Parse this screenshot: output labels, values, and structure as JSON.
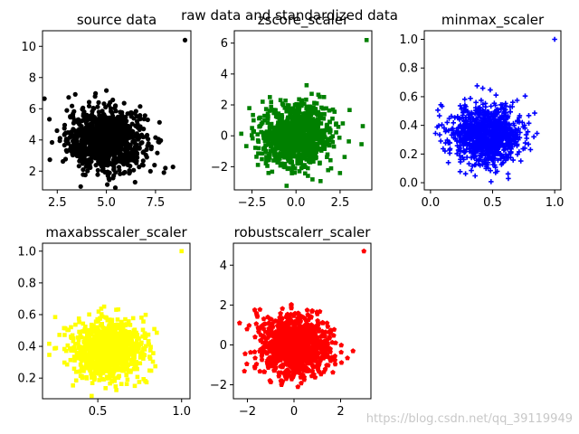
{
  "figure": {
    "suptitle": "raw data and standardized data",
    "watermark": "https://blog.csdn.net/qq_39119949"
  },
  "chart_data": [
    {
      "type": "scatter",
      "title": "source data",
      "color": "#000000",
      "marker": "circle",
      "xlim": [
        1.75,
        9.3
      ],
      "ylim": [
        0.8,
        11.0
      ],
      "xticks": [
        2.5,
        5.0,
        7.5
      ],
      "xtick_labels": [
        "2.5",
        "5.0",
        "7.5"
      ],
      "yticks": [
        2,
        4,
        6,
        8,
        10
      ],
      "ytick_labels": [
        "2",
        "4",
        "6",
        "8",
        "10"
      ],
      "cluster": {
        "center": [
          5.0,
          4.0
        ],
        "spread": [
          1.0,
          1.0
        ],
        "n": 1000
      },
      "outlier": [
        9.0,
        10.4
      ]
    },
    {
      "type": "scatter",
      "title": "zscore_scaler",
      "color": "#008000",
      "marker": "square",
      "xlim": [
        -3.5,
        4.3
      ],
      "ylim": [
        -3.5,
        6.8
      ],
      "xticks": [
        -2.5,
        0.0,
        2.5
      ],
      "xtick_labels": [
        "−2.5",
        "0.0",
        "2.5"
      ],
      "yticks": [
        -2,
        0,
        2,
        4,
        6
      ],
      "ytick_labels": [
        "−2",
        "0",
        "2",
        "4",
        "6"
      ],
      "cluster": {
        "center": [
          0.0,
          0.0
        ],
        "spread": [
          1.0,
          1.0
        ],
        "n": 1000
      },
      "outlier": [
        4.0,
        6.2
      ]
    },
    {
      "type": "scatter",
      "title": "minmax_scaler",
      "color": "#0000ff",
      "marker": "plus",
      "xlim": [
        -0.05,
        1.05
      ],
      "ylim": [
        -0.05,
        1.06
      ],
      "xticks": [
        0.0,
        0.5,
        1.0
      ],
      "xtick_labels": [
        "0.0",
        "0.5",
        "1.0"
      ],
      "yticks": [
        0.0,
        0.2,
        0.4,
        0.6,
        0.8,
        1.0
      ],
      "ytick_labels": [
        "0.0",
        "0.2",
        "0.4",
        "0.6",
        "0.8",
        "1.0"
      ],
      "cluster": {
        "center": [
          0.45,
          0.33
        ],
        "spread": [
          0.14,
          0.1
        ],
        "n": 1000
      },
      "outlier": [
        1.0,
        1.0
      ]
    },
    {
      "type": "scatter",
      "title": "maxabsscaler_scaler",
      "color": "#ffff00",
      "marker": "square",
      "xlim": [
        0.17,
        1.05
      ],
      "ylim": [
        0.07,
        1.05
      ],
      "xticks": [
        0.5,
        1.0
      ],
      "xtick_labels": [
        "0.5",
        "1.0"
      ],
      "yticks": [
        0.2,
        0.4,
        0.6,
        0.8,
        1.0
      ],
      "ytick_labels": [
        "0.2",
        "0.4",
        "0.6",
        "0.8",
        "1.0"
      ],
      "cluster": {
        "center": [
          0.56,
          0.38
        ],
        "spread": [
          0.11,
          0.095
        ],
        "n": 1000
      },
      "outlier": [
        1.0,
        1.0
      ]
    },
    {
      "type": "scatter",
      "title": "robustscalerr_scaler",
      "color": "#ff0000",
      "marker": "pentagon",
      "xlim": [
        -2.6,
        3.3
      ],
      "ylim": [
        -2.7,
        5.1
      ],
      "xticks": [
        -2,
        0,
        2
      ],
      "xtick_labels": [
        "−2",
        "0",
        "2"
      ],
      "yticks": [
        -2,
        0,
        2,
        4
      ],
      "ytick_labels": [
        "−2",
        "0",
        "2",
        "4"
      ],
      "cluster": {
        "center": [
          0.0,
          0.0
        ],
        "spread": [
          0.75,
          0.75
        ],
        "n": 1000
      },
      "outlier": [
        3.0,
        4.7
      ]
    }
  ]
}
